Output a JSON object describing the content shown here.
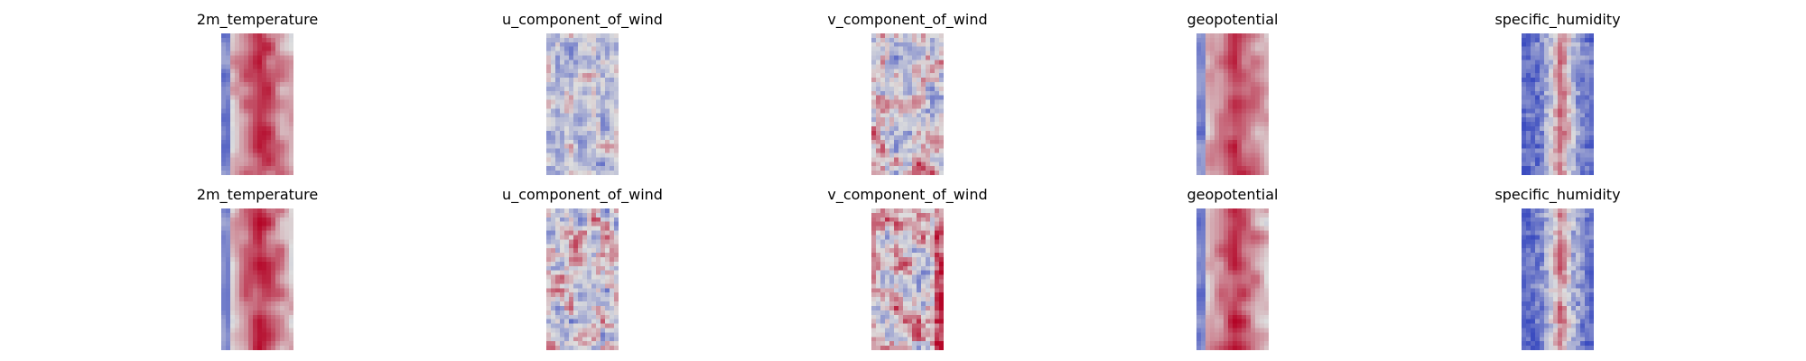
{
  "chart_data": {
    "type": "heatmap",
    "colormap": "coolwarm",
    "colors": {
      "low": "#3b4cc0",
      "mid": "#dddddd",
      "high": "#b40426"
    },
    "axes_visible": false,
    "grid": false,
    "rows": [
      {
        "panels": [
          {
            "title": "2m_temperature",
            "dominant": "warm",
            "values_sample": [
              [
                0.7,
                0.88,
                0.82,
                0.62
              ],
              [
                0.2,
                0.9,
                0.86,
                0.74
              ],
              [
                0.66,
                0.92,
                0.88,
                0.7
              ]
            ]
          },
          {
            "title": "u_component_of_wind",
            "dominant": "neutral-cool",
            "values_sample": [
              [
                0.45,
                0.35,
                0.6,
                0.4
              ],
              [
                0.3,
                0.5,
                0.7,
                0.35
              ],
              [
                0.42,
                0.38,
                0.55,
                0.3
              ]
            ]
          },
          {
            "title": "v_component_of_wind",
            "dominant": "mixed",
            "values_sample": [
              [
                0.55,
                0.3,
                0.72,
                0.4
              ],
              [
                0.25,
                0.8,
                0.45,
                0.6
              ],
              [
                0.6,
                0.35,
                0.85,
                0.5
              ]
            ]
          },
          {
            "title": "geopotential",
            "dominant": "warm",
            "values_sample": [
              [
                0.4,
                0.8,
                0.86,
                0.65
              ],
              [
                0.3,
                0.88,
                0.92,
                0.7
              ],
              [
                0.45,
                0.85,
                0.9,
                0.68
              ]
            ]
          },
          {
            "title": "specific_humidity",
            "dominant": "cool",
            "values_sample": [
              [
                0.1,
                0.35,
                0.7,
                0.2
              ],
              [
                0.08,
                0.6,
                0.75,
                0.15
              ],
              [
                0.12,
                0.4,
                0.65,
                0.18
              ]
            ]
          }
        ]
      },
      {
        "panels": [
          {
            "title": "2m_temperature",
            "dominant": "warm",
            "values_sample": [
              [
                0.6,
                0.85,
                0.8,
                0.58
              ],
              [
                0.15,
                0.88,
                0.84,
                0.5
              ],
              [
                0.62,
                0.9,
                0.86,
                0.66
              ]
            ]
          },
          {
            "title": "u_component_of_wind",
            "dominant": "mixed",
            "values_sample": [
              [
                0.4,
                0.62,
                0.35,
                0.55
              ],
              [
                0.25,
                0.7,
                0.48,
                0.4
              ],
              [
                0.5,
                0.36,
                0.65,
                0.42
              ]
            ]
          },
          {
            "title": "v_component_of_wind",
            "dominant": "mixed-warm",
            "values_sample": [
              [
                0.62,
                0.38,
                0.7,
                0.8
              ],
              [
                0.4,
                0.75,
                0.5,
                0.9
              ],
              [
                0.68,
                0.45,
                0.72,
                0.55
              ]
            ]
          },
          {
            "title": "geopotential",
            "dominant": "warm",
            "values_sample": [
              [
                0.58,
                0.75,
                0.8,
                0.35
              ],
              [
                0.62,
                0.78,
                0.74,
                0.3
              ],
              [
                0.6,
                0.82,
                0.78,
                0.4
              ]
            ]
          },
          {
            "title": "specific_humidity",
            "dominant": "cool",
            "values_sample": [
              [
                0.18,
                0.4,
                0.5,
                0.22
              ],
              [
                0.15,
                0.65,
                0.7,
                0.2
              ],
              [
                0.2,
                0.45,
                0.55,
                0.25
              ]
            ]
          }
        ]
      }
    ]
  }
}
